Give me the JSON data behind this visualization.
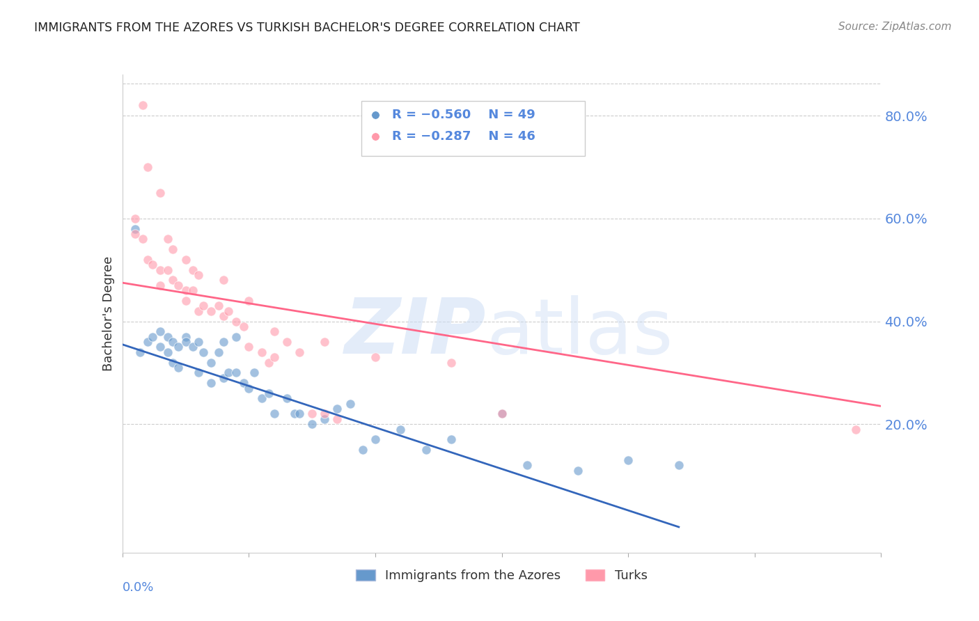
{
  "title": "IMMIGRANTS FROM THE AZORES VS TURKISH BACHELOR'S DEGREE CORRELATION CHART",
  "source": "Source: ZipAtlas.com",
  "ylabel": "Bachelor's Degree",
  "right_ytick_labels": [
    "20.0%",
    "40.0%",
    "60.0%",
    "80.0%"
  ],
  "right_yticks": [
    0.2,
    0.4,
    0.6,
    0.8
  ],
  "xmin": 0.0,
  "xmax": 0.3,
  "ymin": -0.05,
  "ymax": 0.88,
  "legend_blue_r": "R = −0.560",
  "legend_blue_n": "N = 49",
  "legend_pink_r": "R = −0.287",
  "legend_pink_n": "N = 46",
  "legend_label_blue": "Immigrants from the Azores",
  "legend_label_pink": "Turks",
  "blue_color": "#6699CC",
  "pink_color": "#FF99AA",
  "blue_line_color": "#3366BB",
  "pink_line_color": "#FF6688",
  "blue_scatter_x": [
    0.005,
    0.007,
    0.01,
    0.012,
    0.015,
    0.015,
    0.018,
    0.018,
    0.02,
    0.02,
    0.022,
    0.022,
    0.025,
    0.025,
    0.028,
    0.03,
    0.03,
    0.032,
    0.035,
    0.035,
    0.038,
    0.04,
    0.04,
    0.042,
    0.045,
    0.045,
    0.048,
    0.05,
    0.052,
    0.055,
    0.058,
    0.06,
    0.065,
    0.068,
    0.07,
    0.075,
    0.08,
    0.085,
    0.09,
    0.095,
    0.1,
    0.11,
    0.12,
    0.13,
    0.15,
    0.16,
    0.18,
    0.2,
    0.22
  ],
  "blue_scatter_y": [
    0.58,
    0.34,
    0.36,
    0.37,
    0.38,
    0.35,
    0.37,
    0.34,
    0.36,
    0.32,
    0.35,
    0.31,
    0.37,
    0.36,
    0.35,
    0.36,
    0.3,
    0.34,
    0.32,
    0.28,
    0.34,
    0.36,
    0.29,
    0.3,
    0.37,
    0.3,
    0.28,
    0.27,
    0.3,
    0.25,
    0.26,
    0.22,
    0.25,
    0.22,
    0.22,
    0.2,
    0.21,
    0.23,
    0.24,
    0.15,
    0.17,
    0.19,
    0.15,
    0.17,
    0.22,
    0.12,
    0.11,
    0.13,
    0.12
  ],
  "pink_scatter_x": [
    0.005,
    0.008,
    0.01,
    0.012,
    0.015,
    0.015,
    0.018,
    0.02,
    0.022,
    0.025,
    0.025,
    0.028,
    0.03,
    0.032,
    0.035,
    0.038,
    0.04,
    0.042,
    0.045,
    0.048,
    0.05,
    0.055,
    0.058,
    0.06,
    0.065,
    0.07,
    0.075,
    0.08,
    0.085,
    0.008,
    0.01,
    0.015,
    0.018,
    0.02,
    0.025,
    0.028,
    0.03,
    0.04,
    0.05,
    0.06,
    0.08,
    0.1,
    0.13,
    0.15,
    0.29,
    0.005
  ],
  "pink_scatter_y": [
    0.6,
    0.56,
    0.52,
    0.51,
    0.5,
    0.47,
    0.5,
    0.48,
    0.47,
    0.46,
    0.44,
    0.46,
    0.42,
    0.43,
    0.42,
    0.43,
    0.41,
    0.42,
    0.4,
    0.39,
    0.35,
    0.34,
    0.32,
    0.33,
    0.36,
    0.34,
    0.22,
    0.22,
    0.21,
    0.82,
    0.7,
    0.65,
    0.56,
    0.54,
    0.52,
    0.5,
    0.49,
    0.48,
    0.44,
    0.38,
    0.36,
    0.33,
    0.32,
    0.22,
    0.19,
    0.57
  ],
  "blue_line_x": [
    0.0,
    0.22
  ],
  "blue_line_y": [
    0.355,
    0.0
  ],
  "pink_line_x": [
    0.0,
    0.3
  ],
  "pink_line_y": [
    0.475,
    0.235
  ],
  "title_color": "#222222",
  "source_color": "#888888",
  "tick_color": "#5588DD",
  "grid_color": "#CCCCCC"
}
